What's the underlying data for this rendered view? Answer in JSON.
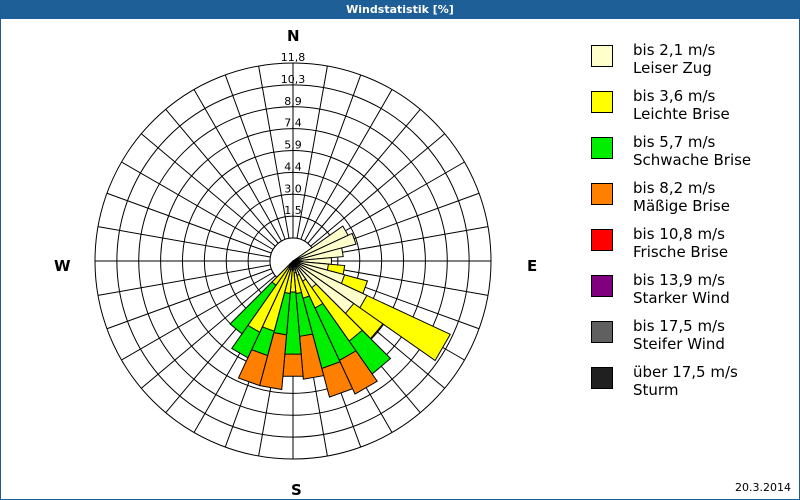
{
  "window": {
    "title": "Windstatistik [%]"
  },
  "directions": {
    "n": "N",
    "e": "E",
    "s": "S",
    "w": "W"
  },
  "date": "20.3.2014",
  "legend": [
    {
      "speed": "bis 2,1 m/s",
      "name": "Leiser Zug",
      "color": "#ffffcc"
    },
    {
      "speed": "bis 3,6 m/s",
      "name": "Leichte Brise",
      "color": "#ffff00"
    },
    {
      "speed": "bis 5,7 m/s",
      "name": "Schwache Brise",
      "color": "#00ee00"
    },
    {
      "speed": "bis 8,2 m/s",
      "name": "Mäßige Brise",
      "color": "#ff8000"
    },
    {
      "speed": "bis 10,8 m/s",
      "name": "Frische Brise",
      "color": "#ff0000"
    },
    {
      "speed": "bis 13,9 m/s",
      "name": "Starker Wind",
      "color": "#800080"
    },
    {
      "speed": "bis 17,5 m/s",
      "name": "Steifer Wind",
      "color": "#606060"
    },
    {
      "speed": "über 17,5 m/s",
      "name": "Sturm",
      "color": "#202020"
    }
  ],
  "chart_data": {
    "type": "wind-rose",
    "title": "Windstatistik [%]",
    "unit": "%",
    "ring_labels": [
      "1,5",
      "3,0",
      "4,4",
      "5,9",
      "7,4",
      "8,9",
      "10,3",
      "11,8"
    ],
    "ring_values": [
      1.5,
      3.0,
      4.4,
      5.9,
      7.4,
      8.9,
      10.3,
      11.8
    ],
    "rmax": 11.8,
    "sector_width_deg": 10,
    "series_names": [
      "bis 2,1 m/s",
      "bis 3,6 m/s",
      "bis 5,7 m/s",
      "bis 8,2 m/s"
    ],
    "series_colors": [
      "#ffffcc",
      "#ffff00",
      "#00ee00",
      "#ff8000"
    ],
    "sectors": [
      {
        "bearing": 60,
        "cumulative": [
          4.1
        ]
      },
      {
        "bearing": 70,
        "cumulative": [
          4.4
        ]
      },
      {
        "bearing": 80,
        "cumulative": [
          3.4
        ]
      },
      {
        "bearing": 90,
        "cumulative": [
          2.6
        ]
      },
      {
        "bearing": 100,
        "cumulative": [
          2.4,
          3.5
        ]
      },
      {
        "bearing": 110,
        "cumulative": [
          3.6,
          5.2
        ]
      },
      {
        "bearing": 120,
        "cumulative": [
          5.5,
          11.7
        ]
      },
      {
        "bearing": 130,
        "cumulative": [
          5.0,
          7.4
        ]
      },
      {
        "bearing": 140,
        "cumulative": [
          2.2,
          6.6,
          9.3
        ]
      },
      {
        "bearing": 150,
        "cumulative": [
          1.5,
          3.5,
          7.4,
          9.9
        ]
      },
      {
        "bearing": 160,
        "cumulative": [
          1.0,
          2.6,
          7.5,
          9.5
        ]
      },
      {
        "bearing": 170,
        "cumulative": [
          0.8,
          2.2,
          5.1,
          8.0
        ]
      },
      {
        "bearing": 180,
        "cumulative": [
          0.6,
          2.1,
          6.3,
          7.8
        ]
      },
      {
        "bearing": 190,
        "cumulative": [
          0.6,
          2.2,
          5.0,
          8.7
        ]
      },
      {
        "bearing": 200,
        "cumulative": [
          0.6,
          4.9,
          6.6,
          8.7
        ]
      },
      {
        "bearing": 210,
        "cumulative": [
          0.5,
          5.3,
          7.2
        ]
      },
      {
        "bearing": 220,
        "cumulative": [
          0.3,
          2.0,
          6.0
        ]
      }
    ]
  }
}
